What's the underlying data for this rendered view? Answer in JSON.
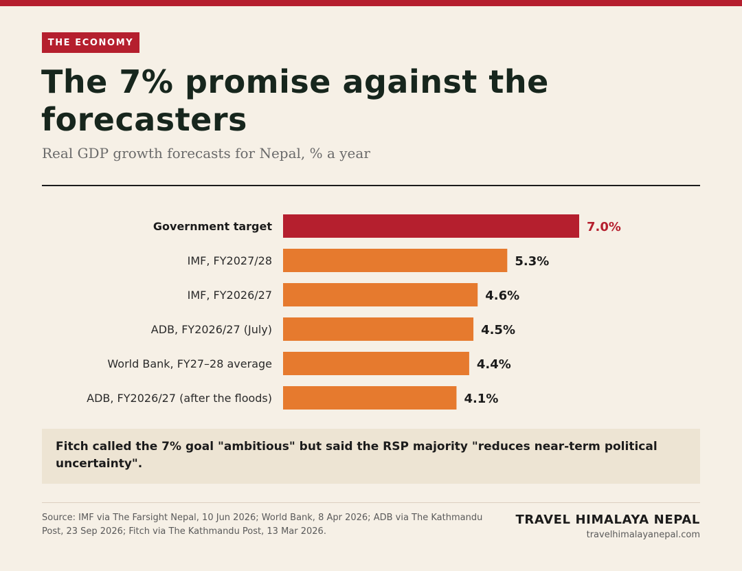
{
  "kicker": "THE ECONOMY",
  "title": "The 7% promise against the forecasters",
  "subtitle": "Real GDP growth forecasts for Nepal, % a year",
  "chart_data": {
    "type": "bar",
    "orientation": "horizontal",
    "categories": [
      "Government target",
      "IMF, FY2027/28",
      "IMF, FY2026/27",
      "ADB, FY2026/27 (July)",
      "World Bank, FY27–28 average",
      "ADB, FY2026/27 (after the floods)"
    ],
    "values": [
      7.0,
      5.3,
      4.6,
      4.5,
      4.4,
      4.1
    ],
    "value_labels": [
      "7.0%",
      "5.3%",
      "4.6%",
      "4.5%",
      "4.4%",
      "4.1%"
    ],
    "highlight_index": 0,
    "xlim": [
      0,
      7.0
    ],
    "grid": false,
    "colors": {
      "highlight": "#b51f2e",
      "default": "#e67a2e"
    }
  },
  "note": "Fitch called the 7% goal \"ambitious\" but said the RSP majority \"reduces near-term political uncertainty\".",
  "source": "Source: IMF via The Farsight Nepal, 10 Jun 2026; World Bank, 8 Apr 2026; ADB via The Kathmandu Post, 23 Sep 2026; Fitch via The Kathmandu Post, 13 Mar 2026.",
  "brand": {
    "name": "TRAVEL HIMALAYA NEPAL",
    "url": "travelhimalayanepal.com"
  }
}
